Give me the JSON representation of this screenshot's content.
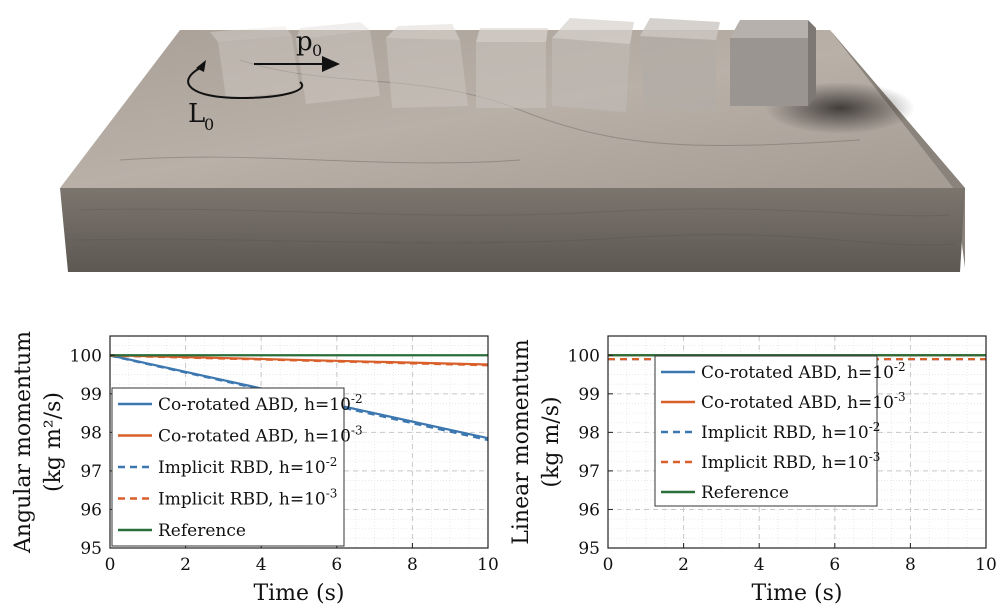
{
  "scene": {
    "linear_momentum_label": "p",
    "linear_momentum_sub": "0",
    "angular_momentum_label": "L",
    "angular_momentum_sub": "0",
    "colors": {
      "slab_top": "#b3aaa2",
      "slab_front": "#6f6962",
      "slab_side": "#8a837b"
    }
  },
  "chart_data": [
    {
      "type": "line",
      "ylabel": [
        "Angular momentum",
        "(kg m²/s)"
      ],
      "xlabel": "Time (s)",
      "xlim": [
        0,
        10
      ],
      "ylim": [
        95,
        100.5
      ],
      "xticks": [
        0,
        2,
        4,
        6,
        8,
        10
      ],
      "yticks": [
        95,
        96,
        97,
        98,
        99,
        100
      ],
      "grid": true,
      "legend_position": "lower-left",
      "series": [
        {
          "name": "Co-rotated ABD, h=10",
          "exp": "-2",
          "color": "#3c77b0",
          "dash": "solid",
          "x": [
            0,
            10
          ],
          "y": [
            100.0,
            97.85
          ]
        },
        {
          "name": "Co-rotated ABD, h=10",
          "exp": "-3",
          "color": "#d95f2b",
          "dash": "solid",
          "x": [
            0,
            10
          ],
          "y": [
            100.0,
            99.76
          ]
        },
        {
          "name": "Implicit RBD, h=10",
          "exp": "-2",
          "color": "#3c77b0",
          "dash": "dashed",
          "x": [
            0,
            10
          ],
          "y": [
            99.99,
            97.8
          ]
        },
        {
          "name": "Implicit RBD, h=10",
          "exp": "-3",
          "color": "#d95f2b",
          "dash": "dashed",
          "x": [
            0,
            10
          ],
          "y": [
            99.99,
            99.74
          ]
        },
        {
          "name": "Reference",
          "exp": "",
          "color": "#2a6e3a",
          "dash": "solid",
          "x": [
            0,
            10
          ],
          "y": [
            100.0,
            100.0
          ]
        }
      ]
    },
    {
      "type": "line",
      "ylabel": [
        "Linear momentum",
        "(kg m/s)"
      ],
      "xlabel": "Time (s)",
      "xlim": [
        0,
        10
      ],
      "ylim": [
        95,
        100.5
      ],
      "xticks": [
        0,
        2,
        4,
        6,
        8,
        10
      ],
      "yticks": [
        95,
        96,
        97,
        98,
        99,
        100
      ],
      "grid": true,
      "legend_position": "upper-left",
      "series": [
        {
          "name": "Co-rotated ABD, h=10",
          "exp": "-2",
          "color": "#3c77b0",
          "dash": "solid",
          "x": [
            0,
            10
          ],
          "y": [
            100.0,
            100.0
          ]
        },
        {
          "name": "Co-rotated ABD, h=10",
          "exp": "-3",
          "color": "#d95f2b",
          "dash": "solid",
          "x": [
            0,
            10
          ],
          "y": [
            100.0,
            100.0
          ]
        },
        {
          "name": "Implicit RBD, h=10",
          "exp": "-2",
          "color": "#3c77b0",
          "dash": "dashed",
          "x": [
            0,
            10
          ],
          "y": [
            99.9,
            99.9
          ]
        },
        {
          "name": "Implicit RBD, h=10",
          "exp": "-3",
          "color": "#d95f2b",
          "dash": "dashed",
          "x": [
            0,
            10
          ],
          "y": [
            99.9,
            99.9
          ]
        },
        {
          "name": "Reference",
          "exp": "",
          "color": "#2a6e3a",
          "dash": "solid",
          "x": [
            0,
            10
          ],
          "y": [
            100.0,
            100.0
          ]
        }
      ]
    }
  ]
}
